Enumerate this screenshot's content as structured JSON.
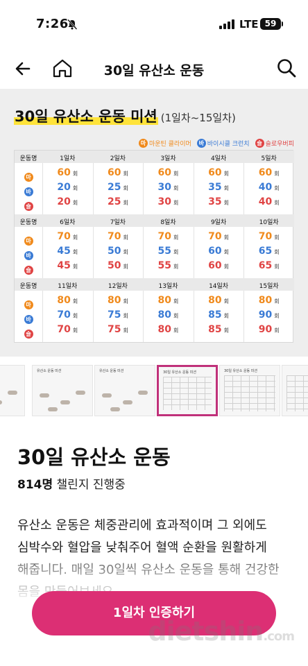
{
  "status_bar": {
    "time": "7:26",
    "network": "LTE",
    "battery": "59"
  },
  "nav": {
    "title": "30일 유산소 운동"
  },
  "hero": {
    "title": "30일 유산소 운동 미션",
    "subtitle": "(1일차~15일차)",
    "legend": [
      {
        "badge": "마",
        "label": "마운틴 클라이머",
        "color": "#f08a1c"
      },
      {
        "badge": "바",
        "label": "바이시클 크런치",
        "color": "#3a7bd5"
      },
      {
        "badge": "슬",
        "label": "슬로우버피",
        "color": "#e04444"
      }
    ],
    "row_label": "운동명",
    "unit": "회",
    "blocks": [
      {
        "days": [
          "1일차",
          "2일차",
          "3일차",
          "4일차",
          "5일차"
        ],
        "rows": [
          [
            "60",
            "60",
            "60",
            "60",
            "60"
          ],
          [
            "20",
            "25",
            "30",
            "35",
            "40"
          ],
          [
            "20",
            "25",
            "30",
            "35",
            "40"
          ]
        ]
      },
      {
        "days": [
          "6일차",
          "7일차",
          "8일차",
          "9일차",
          "10일차"
        ],
        "rows": [
          [
            "70",
            "70",
            "70",
            "70",
            "70"
          ],
          [
            "45",
            "50",
            "55",
            "60",
            "65"
          ],
          [
            "45",
            "50",
            "55",
            "60",
            "65"
          ]
        ]
      },
      {
        "days": [
          "11일차",
          "12일차",
          "13일차",
          "14일차",
          "15일차"
        ],
        "rows": [
          [
            "80",
            "80",
            "80",
            "80",
            "80"
          ],
          [
            "70",
            "75",
            "80",
            "85",
            "90"
          ],
          [
            "70",
            "75",
            "80",
            "85",
            "90"
          ]
        ]
      }
    ]
  },
  "thumbnails": [
    {
      "title": ""
    },
    {
      "title": "유산소 운동 미션"
    },
    {
      "title": "유산소 운동 미션"
    },
    {
      "title": "30일 유산소 운동 미션"
    },
    {
      "title": "30일 유산소 운동 미션"
    },
    {
      "title": ""
    }
  ],
  "content": {
    "title": "30일 유산소 운동",
    "participants_count": "814명",
    "participants_label": "챌린지 진행중",
    "description": "유산소 운동은 체중관리에 효과적이며 그 외에도 심박수와 혈압을 낮춰주어 혈액 순환을 원활하게 해줍니다. 매일 30일씩 유산소 운동을 통해 건강한 몸을 만들어보세요."
  },
  "cta": {
    "label": "1일차 인증하기"
  },
  "watermark": {
    "text": "dietshin",
    "suffix": ".com"
  },
  "colors": {
    "accent": "#dc2f74",
    "highlight": "#ffe33a",
    "mountain": "#f08a1c",
    "bicycle": "#3a7bd5",
    "burpee": "#e04444"
  }
}
